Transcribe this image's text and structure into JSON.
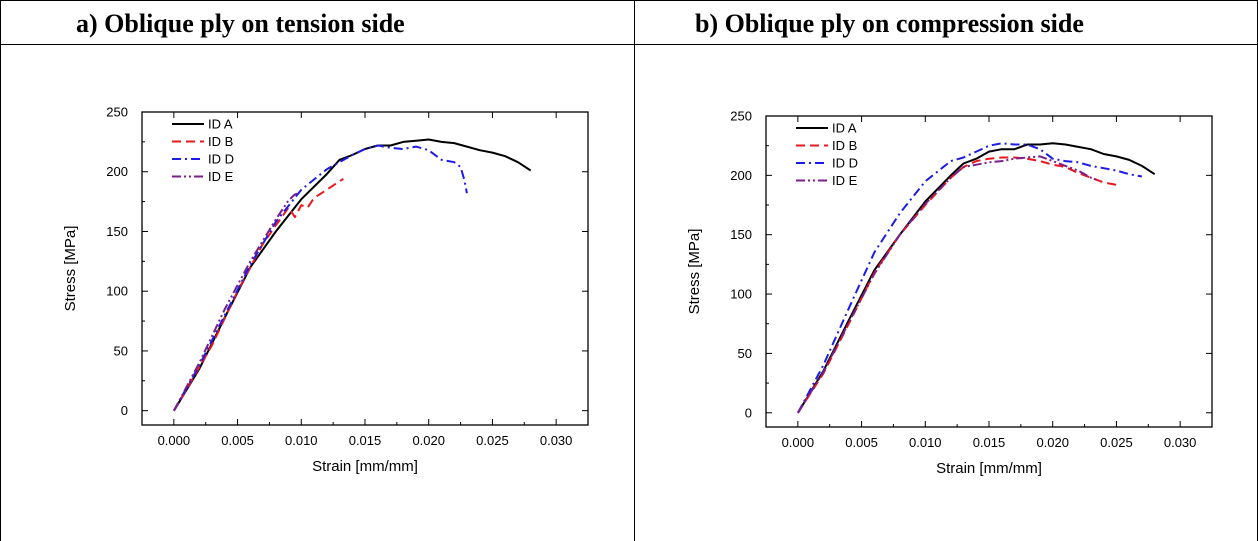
{
  "panels": [
    {
      "heading": "a)   Oblique ply on tension side"
    },
    {
      "heading": "b)   Oblique ply on compression side"
    }
  ],
  "colors": {
    "ID A": "#000000",
    "ID B": "#e8181c",
    "ID D": "#1c1ce8",
    "ID E": "#7a1e8c"
  },
  "chart_data": [
    {
      "type": "line",
      "title": "",
      "xlabel": "Strain [mm/mm]",
      "ylabel": "Stress [MPa]",
      "xlim": [
        -0.0025,
        0.0325
      ],
      "ylim": [
        -12,
        250
      ],
      "xticks": [
        "0.000",
        "0.005",
        "0.010",
        "0.015",
        "0.020",
        "0.025",
        "0.030"
      ],
      "yticks": [
        "0",
        "50",
        "100",
        "150",
        "200",
        "250"
      ],
      "legend_position": "top-left",
      "series": [
        {
          "name": "ID A",
          "style": "solid",
          "x": [
            0,
            0.002,
            0.004,
            0.006,
            0.008,
            0.01,
            0.012,
            0.013,
            0.014,
            0.015,
            0.016,
            0.017,
            0.018,
            0.019,
            0.02,
            0.021,
            0.022,
            0.023,
            0.024,
            0.025,
            0.026,
            0.027,
            0.028
          ],
          "y": [
            0,
            35,
            78,
            120,
            150,
            177,
            198,
            210,
            214,
            219,
            222,
            222,
            225,
            226,
            227,
            225,
            224,
            221,
            218,
            216,
            213,
            208,
            201
          ]
        },
        {
          "name": "ID B",
          "style": "dashed",
          "x": [
            0,
            0.001,
            0.003,
            0.005,
            0.007,
            0.009,
            0.0095,
            0.01,
            0.0105,
            0.011,
            0.012,
            0.013,
            0.0133
          ],
          "y": [
            0,
            18,
            55,
            100,
            140,
            170,
            162,
            172,
            170,
            178,
            185,
            192,
            194
          ]
        },
        {
          "name": "ID D",
          "style": "dashdot",
          "x": [
            0,
            0.002,
            0.004,
            0.006,
            0.008,
            0.01,
            0.012,
            0.014,
            0.015,
            0.016,
            0.017,
            0.018,
            0.019,
            0.02,
            0.021,
            0.022,
            0.0225,
            0.0228,
            0.023
          ],
          "y": [
            0,
            38,
            80,
            122,
            158,
            185,
            202,
            214,
            219,
            222,
            220,
            219,
            221,
            218,
            210,
            208,
            204,
            193,
            182
          ]
        },
        {
          "name": "ID E",
          "style": "dashdotdot",
          "x": [
            0,
            0.002,
            0.004,
            0.006,
            0.008,
            0.009,
            0.0095,
            0.0098
          ],
          "y": [
            0,
            40,
            85,
            125,
            160,
            176,
            181,
            182
          ]
        }
      ]
    },
    {
      "type": "line",
      "title": "",
      "xlabel": "Strain [mm/mm]",
      "ylabel": "Stress [MPa]",
      "xlim": [
        -0.0025,
        0.0325
      ],
      "ylim": [
        -12,
        250
      ],
      "xticks": [
        "0.000",
        "0.005",
        "0.010",
        "0.015",
        "0.020",
        "0.025",
        "0.030"
      ],
      "yticks": [
        "0",
        "50",
        "100",
        "150",
        "200",
        "250"
      ],
      "legend_position": "top-left",
      "series": [
        {
          "name": "ID A",
          "style": "solid",
          "x": [
            0,
            0.002,
            0.004,
            0.006,
            0.008,
            0.01,
            0.012,
            0.013,
            0.014,
            0.015,
            0.016,
            0.017,
            0.018,
            0.019,
            0.02,
            0.021,
            0.022,
            0.023,
            0.024,
            0.025,
            0.026,
            0.027,
            0.028
          ],
          "y": [
            0,
            35,
            78,
            120,
            150,
            178,
            200,
            210,
            214,
            220,
            222,
            222,
            226,
            226,
            227,
            226,
            224,
            222,
            218,
            216,
            213,
            208,
            201
          ]
        },
        {
          "name": "ID B",
          "style": "dashed",
          "x": [
            0,
            0.002,
            0.004,
            0.006,
            0.008,
            0.01,
            0.012,
            0.013,
            0.014,
            0.015,
            0.016,
            0.017,
            0.018,
            0.019,
            0.02,
            0.021,
            0.022,
            0.023,
            0.024,
            0.025
          ],
          "y": [
            0,
            33,
            75,
            118,
            150,
            175,
            198,
            207,
            212,
            214,
            215,
            215,
            214,
            212,
            209,
            207,
            202,
            198,
            194,
            192
          ]
        },
        {
          "name": "ID D",
          "style": "dashdot",
          "x": [
            0,
            0.002,
            0.004,
            0.006,
            0.008,
            0.01,
            0.012,
            0.013,
            0.014,
            0.015,
            0.016,
            0.017,
            0.018,
            0.019,
            0.02,
            0.021,
            0.022,
            0.023,
            0.024,
            0.025,
            0.026,
            0.027
          ],
          "y": [
            0,
            40,
            88,
            135,
            168,
            195,
            212,
            215,
            220,
            225,
            227,
            226,
            226,
            222,
            214,
            212,
            211,
            208,
            206,
            204,
            201,
            199
          ]
        },
        {
          "name": "ID E",
          "style": "dashdotdot",
          "x": [
            0,
            0.002,
            0.004,
            0.006,
            0.008,
            0.01,
            0.012,
            0.013,
            0.014,
            0.015,
            0.016,
            0.017,
            0.018,
            0.019,
            0.02,
            0.021,
            0.022,
            0.023,
            0.0235
          ],
          "y": [
            0,
            34,
            76,
            117,
            150,
            176,
            198,
            207,
            209,
            211,
            212,
            214,
            215,
            216,
            212,
            208,
            204,
            198,
            196
          ]
        }
      ]
    }
  ]
}
